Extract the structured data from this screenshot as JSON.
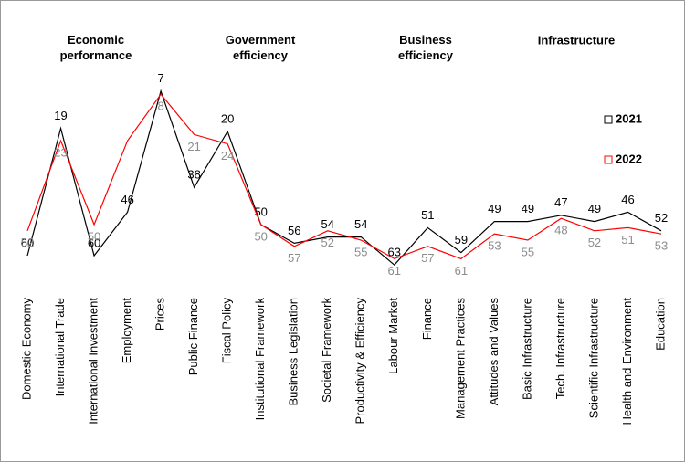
{
  "chart_data": {
    "type": "line",
    "group_titles": [
      "Economic performance",
      "Government efficiency",
      "Business efficiency",
      "Infrastructure"
    ],
    "categories": [
      "Domestic Economy",
      "International Trade",
      "International Investment",
      "Employment",
      "Prices",
      "Public Finance",
      "Fiscal Policy",
      "Institutional Framework",
      "Business Legislation",
      "Societal Framework",
      "Productivity & Efficiency",
      "Labour Market",
      "Finance",
      "Management Practices",
      "Attitudes and Values",
      "Basic Infrastructure",
      "Tech. Infrastructure",
      "Scientific Infrastructure",
      "Health and Environment",
      "Education"
    ],
    "series": [
      {
        "name": "2021",
        "color": "#000000",
        "label_color": "#000000",
        "values": [
          60,
          19,
          60,
          46,
          7,
          38,
          20,
          50,
          56,
          54,
          54,
          63,
          51,
          59,
          49,
          49,
          47,
          49,
          46,
          52
        ]
      },
      {
        "name": "2022",
        "color": "#ff0000",
        "label_color": "#8c8c8c",
        "values": [
          52,
          23,
          50,
          23,
          8,
          21,
          24,
          50,
          57,
          52,
          55,
          61,
          57,
          61,
          53,
          55,
          48,
          52,
          51,
          53
        ],
        "value_labels": [
          "52",
          "23",
          "50",
          null,
          "8",
          "21",
          "24",
          "50",
          "57",
          "52",
          "55",
          "61",
          "57",
          "61",
          "53",
          "55",
          "48",
          "52",
          "51",
          "53"
        ]
      }
    ],
    "ylim": [
      0,
      70
    ],
    "inverted": true,
    "legend": "right"
  }
}
